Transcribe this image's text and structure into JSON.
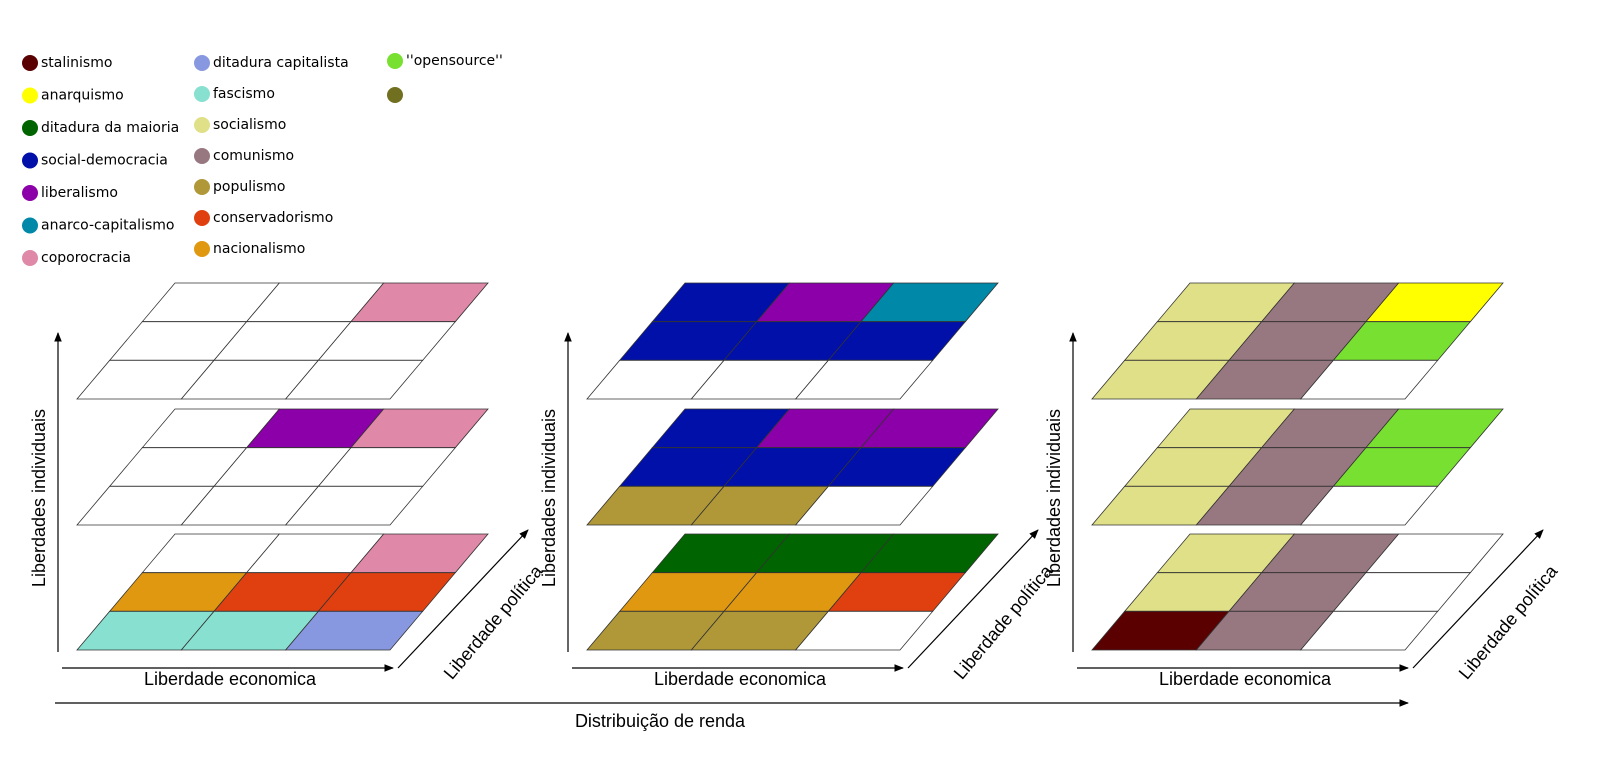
{
  "legend": [
    {
      "name": "stalinismo",
      "color": "#5a0000"
    },
    {
      "name": "anarquismo",
      "color": "#ffff00"
    },
    {
      "name": "ditadura da maioria",
      "color": "#006400"
    },
    {
      "name": "social-democracia",
      "color": "#0010a8"
    },
    {
      "name": "liberalismo",
      "color": "#8b00a8"
    },
    {
      "name": "anarco-capitalismo",
      "color": "#0088a8"
    },
    {
      "name": "coporocracia",
      "color": "#e088a8"
    },
    {
      "name": "ditadura capitalista",
      "color": "#8898e0"
    },
    {
      "name": "fascismo",
      "color": "#88e0d0"
    },
    {
      "name": "socialismo",
      "color": "#e0e088"
    },
    {
      "name": "comunismo",
      "color": "#987880"
    },
    {
      "name": "populismo",
      "color": "#b09838"
    },
    {
      "name": "conservadorismo",
      "color": "#e04010"
    },
    {
      "name": "nacionalismo",
      "color": "#e09810"
    },
    {
      "name": "''opensource''",
      "color": "#78e030"
    },
    {
      "name": null,
      "color": "#707020"
    }
  ],
  "panels": [
    {
      "y_axis": "Liberdades individuais",
      "x_axis": "Liberdade economica",
      "z_axis": "Liberdade política",
      "layers": [
        [
          [
            null,
            null,
            "#e088a8"
          ],
          [
            null,
            null,
            null
          ],
          [
            null,
            null,
            null
          ]
        ],
        [
          [
            null,
            "#8b00a8",
            "#e088a8"
          ],
          [
            null,
            null,
            null
          ],
          [
            null,
            null,
            null
          ]
        ],
        [
          [
            null,
            null,
            "#e088a8"
          ],
          [
            "#e09810",
            "#e04010",
            "#e04010"
          ],
          [
            "#88e0d0",
            "#88e0d0",
            "#8898e0"
          ]
        ]
      ]
    },
    {
      "y_axis": "Liberdades individuais",
      "x_axis": "Liberdade economica",
      "z_axis": "Liberdade política",
      "layers": [
        [
          [
            "#0010a8",
            "#8b00a8",
            "#0088a8"
          ],
          [
            "#0010a8",
            "#0010a8",
            "#0010a8"
          ],
          [
            null,
            null,
            null
          ]
        ],
        [
          [
            "#0010a8",
            "#8b00a8",
            "#8b00a8"
          ],
          [
            "#0010a8",
            "#0010a8",
            "#0010a8"
          ],
          [
            "#b09838",
            "#b09838",
            null
          ]
        ],
        [
          [
            "#006400",
            "#006400",
            "#006400"
          ],
          [
            "#e09810",
            "#e09810",
            "#e04010"
          ],
          [
            "#b09838",
            "#b09838",
            null
          ]
        ]
      ]
    },
    {
      "y_axis": "Liberdades individuais",
      "x_axis": "Liberdade economica",
      "z_axis": "Liberdade política",
      "layers": [
        [
          [
            "#e0e088",
            "#987880",
            "#ffff00"
          ],
          [
            "#e0e088",
            "#987880",
            "#78e030"
          ],
          [
            "#e0e088",
            "#987880",
            null
          ]
        ],
        [
          [
            "#e0e088",
            "#987880",
            "#78e030"
          ],
          [
            "#e0e088",
            "#987880",
            "#78e030"
          ],
          [
            "#e0e088",
            "#987880",
            null
          ]
        ],
        [
          [
            "#e0e088",
            "#987880",
            null
          ],
          [
            "#e0e088",
            "#987880",
            null
          ],
          [
            "#5a0000",
            "#987880",
            null
          ]
        ]
      ]
    }
  ],
  "bottom_axis": "Distribuição de renda"
}
